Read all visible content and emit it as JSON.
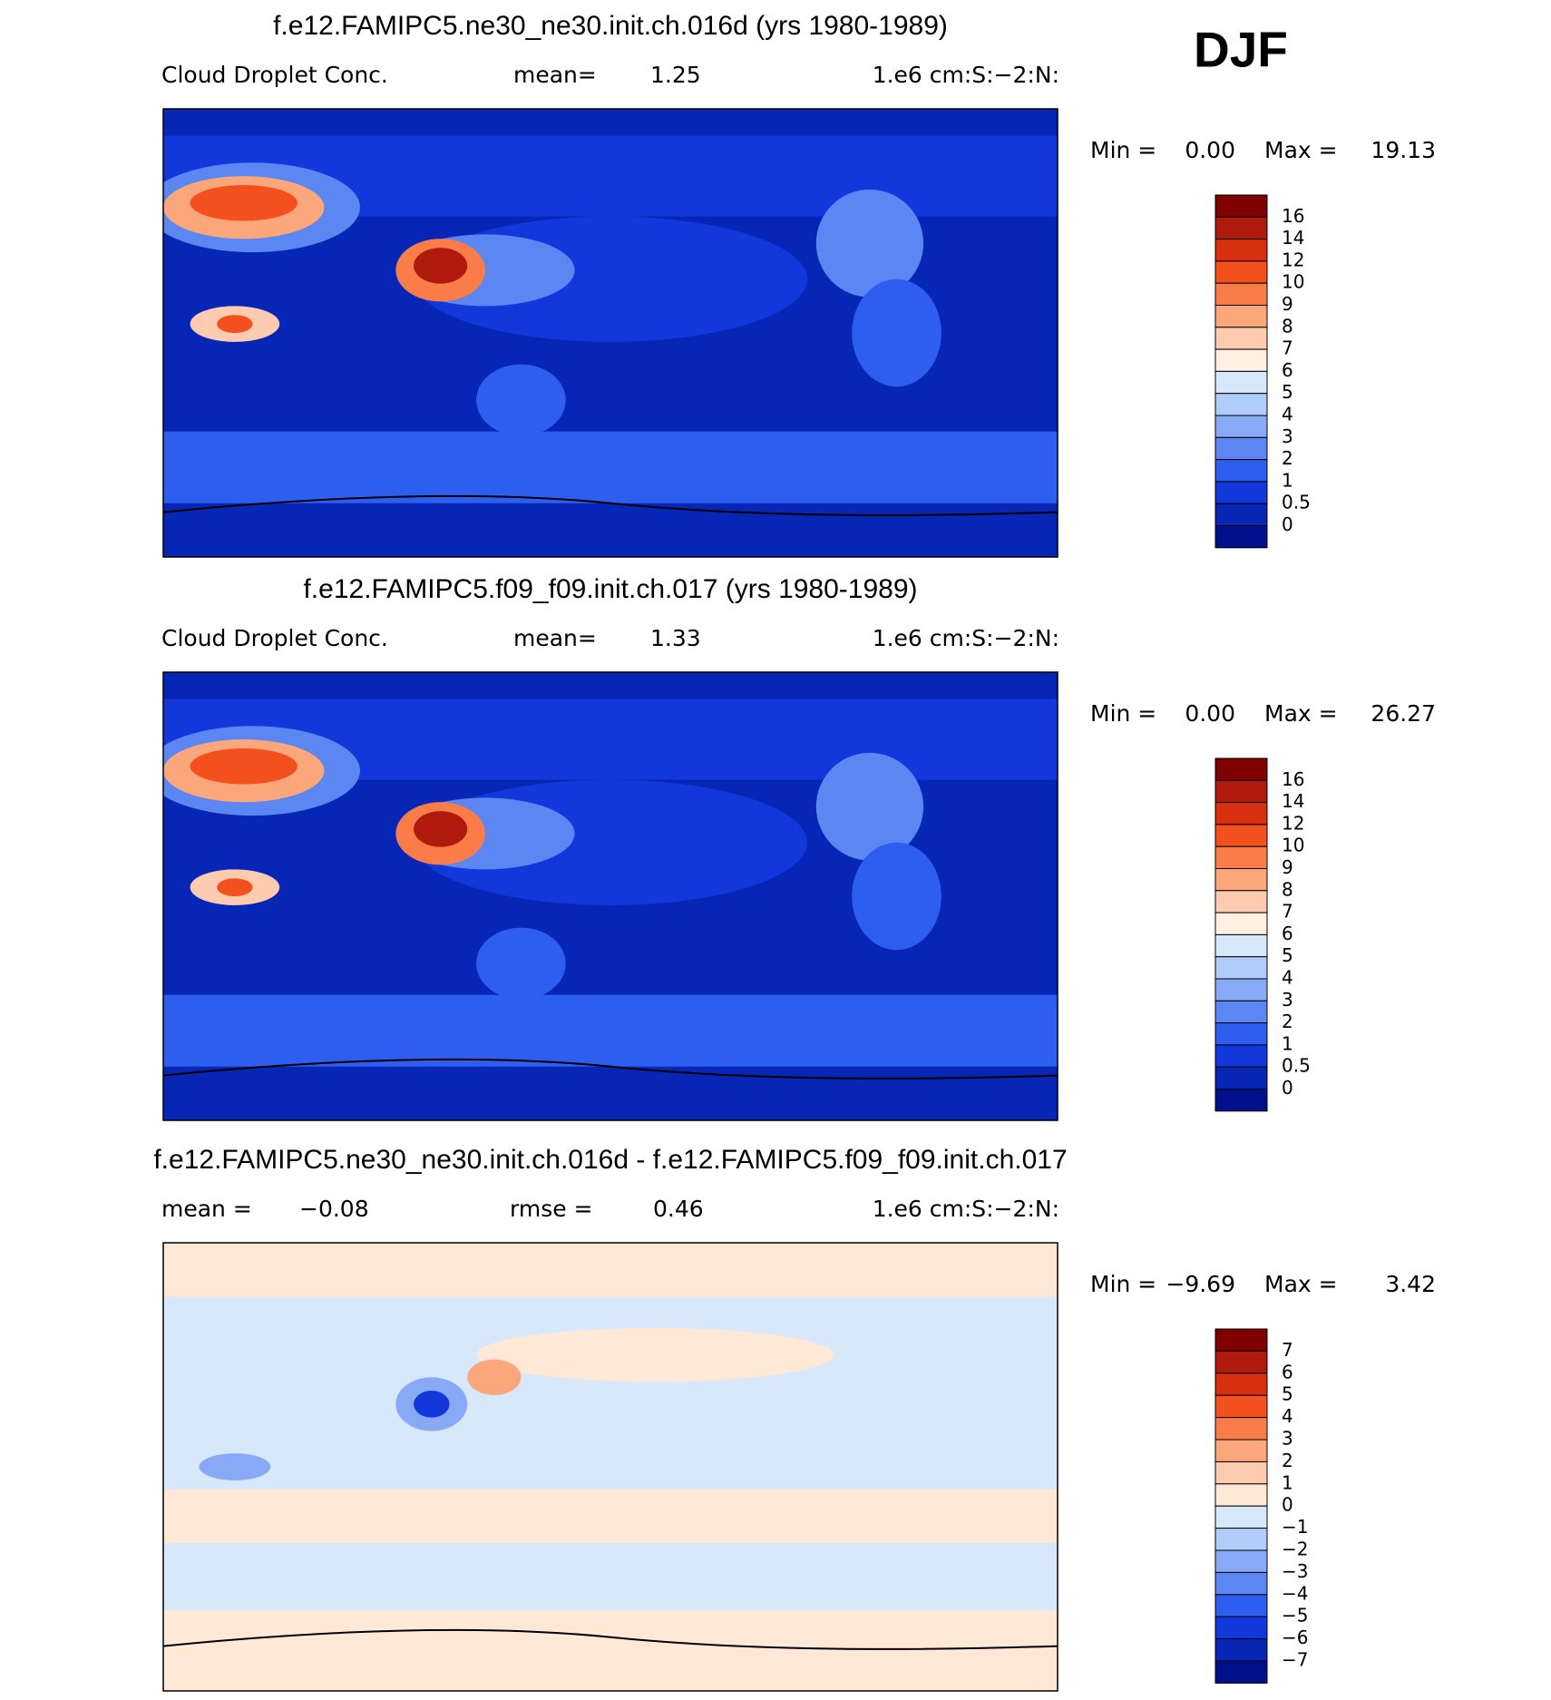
{
  "season": "DJF",
  "panels": [
    {
      "title": "f.e12.FAMIPC5.ne30_ne30.init.ch.016d (yrs 1980-1989)",
      "subtitle": [
        "Cloud Droplet Conc.",
        "mean=",
        "1.25",
        "1.e6 cm:S:−2:N:"
      ],
      "range": [
        "Min =",
        "0.00",
        "Max =",
        "19.13"
      ],
      "levels": [
        "16",
        "14",
        "12",
        "10",
        "9",
        "8",
        "7",
        "6",
        "5",
        "4",
        "3",
        "2",
        "1",
        "0.5",
        "0"
      ],
      "colors": [
        "#7f0000",
        "#b01a0c",
        "#d8300e",
        "#f4501e",
        "#fa7c48",
        "#fca67c",
        "#fdcbb0",
        "#fff0e2",
        "#d6e8fa",
        "#b0ccf8",
        "#88aaf6",
        "#5c86f2",
        "#2e5ef0",
        "#1238dc",
        "#0826b6",
        "#00108a"
      ]
    },
    {
      "title": "f.e12.FAMIPC5.f09_f09.init.ch.017 (yrs 1980-1989)",
      "subtitle": [
        "Cloud Droplet Conc.",
        "mean=",
        "1.33",
        "1.e6 cm:S:−2:N:"
      ],
      "range": [
        "Min =",
        "0.00",
        "Max =",
        "26.27"
      ],
      "levels": [
        "16",
        "14",
        "12",
        "10",
        "9",
        "8",
        "7",
        "6",
        "5",
        "4",
        "3",
        "2",
        "1",
        "0.5",
        "0"
      ],
      "colors": [
        "#7f0000",
        "#b01a0c",
        "#d8300e",
        "#f4501e",
        "#fa7c48",
        "#fca67c",
        "#fdcbb0",
        "#fff0e2",
        "#d6e8fa",
        "#b0ccf8",
        "#88aaf6",
        "#5c86f2",
        "#2e5ef0",
        "#1238dc",
        "#0826b6",
        "#00108a"
      ]
    },
    {
      "title": "f.e12.FAMIPC5.ne30_ne30.init.ch.016d - f.e12.FAMIPC5.f09_f09.init.ch.017",
      "subtitle": [
        "mean =",
        "−0.08",
        "rmse =",
        "0.46",
        "1.e6 cm:S:−2:N:"
      ],
      "range": [
        "Min =",
        "−9.69",
        "Max =",
        "3.42"
      ],
      "levels": [
        "7",
        "6",
        "5",
        "4",
        "3",
        "2",
        "1",
        "0",
        "−1",
        "−2",
        "−3",
        "−4",
        "−5",
        "−6",
        "−7"
      ],
      "colors": [
        "#7f0000",
        "#b01a0c",
        "#d8300e",
        "#f4501e",
        "#fa7c48",
        "#fca67c",
        "#fdcbb0",
        "#ffe8d6",
        "#d6e8fa",
        "#b0ccf8",
        "#88aaf6",
        "#5c86f2",
        "#2e5ef0",
        "#1238dc",
        "#0826b6",
        "#00108a"
      ]
    }
  ]
}
